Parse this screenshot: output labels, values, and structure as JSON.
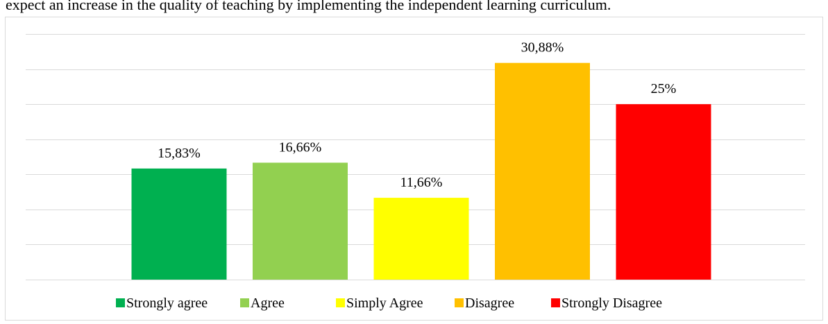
{
  "chart_data": {
    "type": "bar",
    "title": "expect an increase in the quality of teaching by implementing the independent learning curriculum.",
    "categories": [
      "Strongly agree",
      "Agree",
      "Simply Agree",
      "Disagree",
      "Strongly Disagree"
    ],
    "values": [
      15.83,
      16.66,
      11.66,
      30.88,
      25
    ],
    "value_labels": [
      "15,83%",
      "16,66%",
      "11,66%",
      "30,88%",
      "25%"
    ],
    "colors": [
      "#00b050",
      "#92d050",
      "#ffff00",
      "#ffc000",
      "#ff0000"
    ],
    "ylim": [
      0,
      35
    ],
    "yticks": [
      0,
      5,
      10,
      15,
      20,
      25,
      30,
      35
    ],
    "grid": true,
    "legend": "bottom"
  }
}
